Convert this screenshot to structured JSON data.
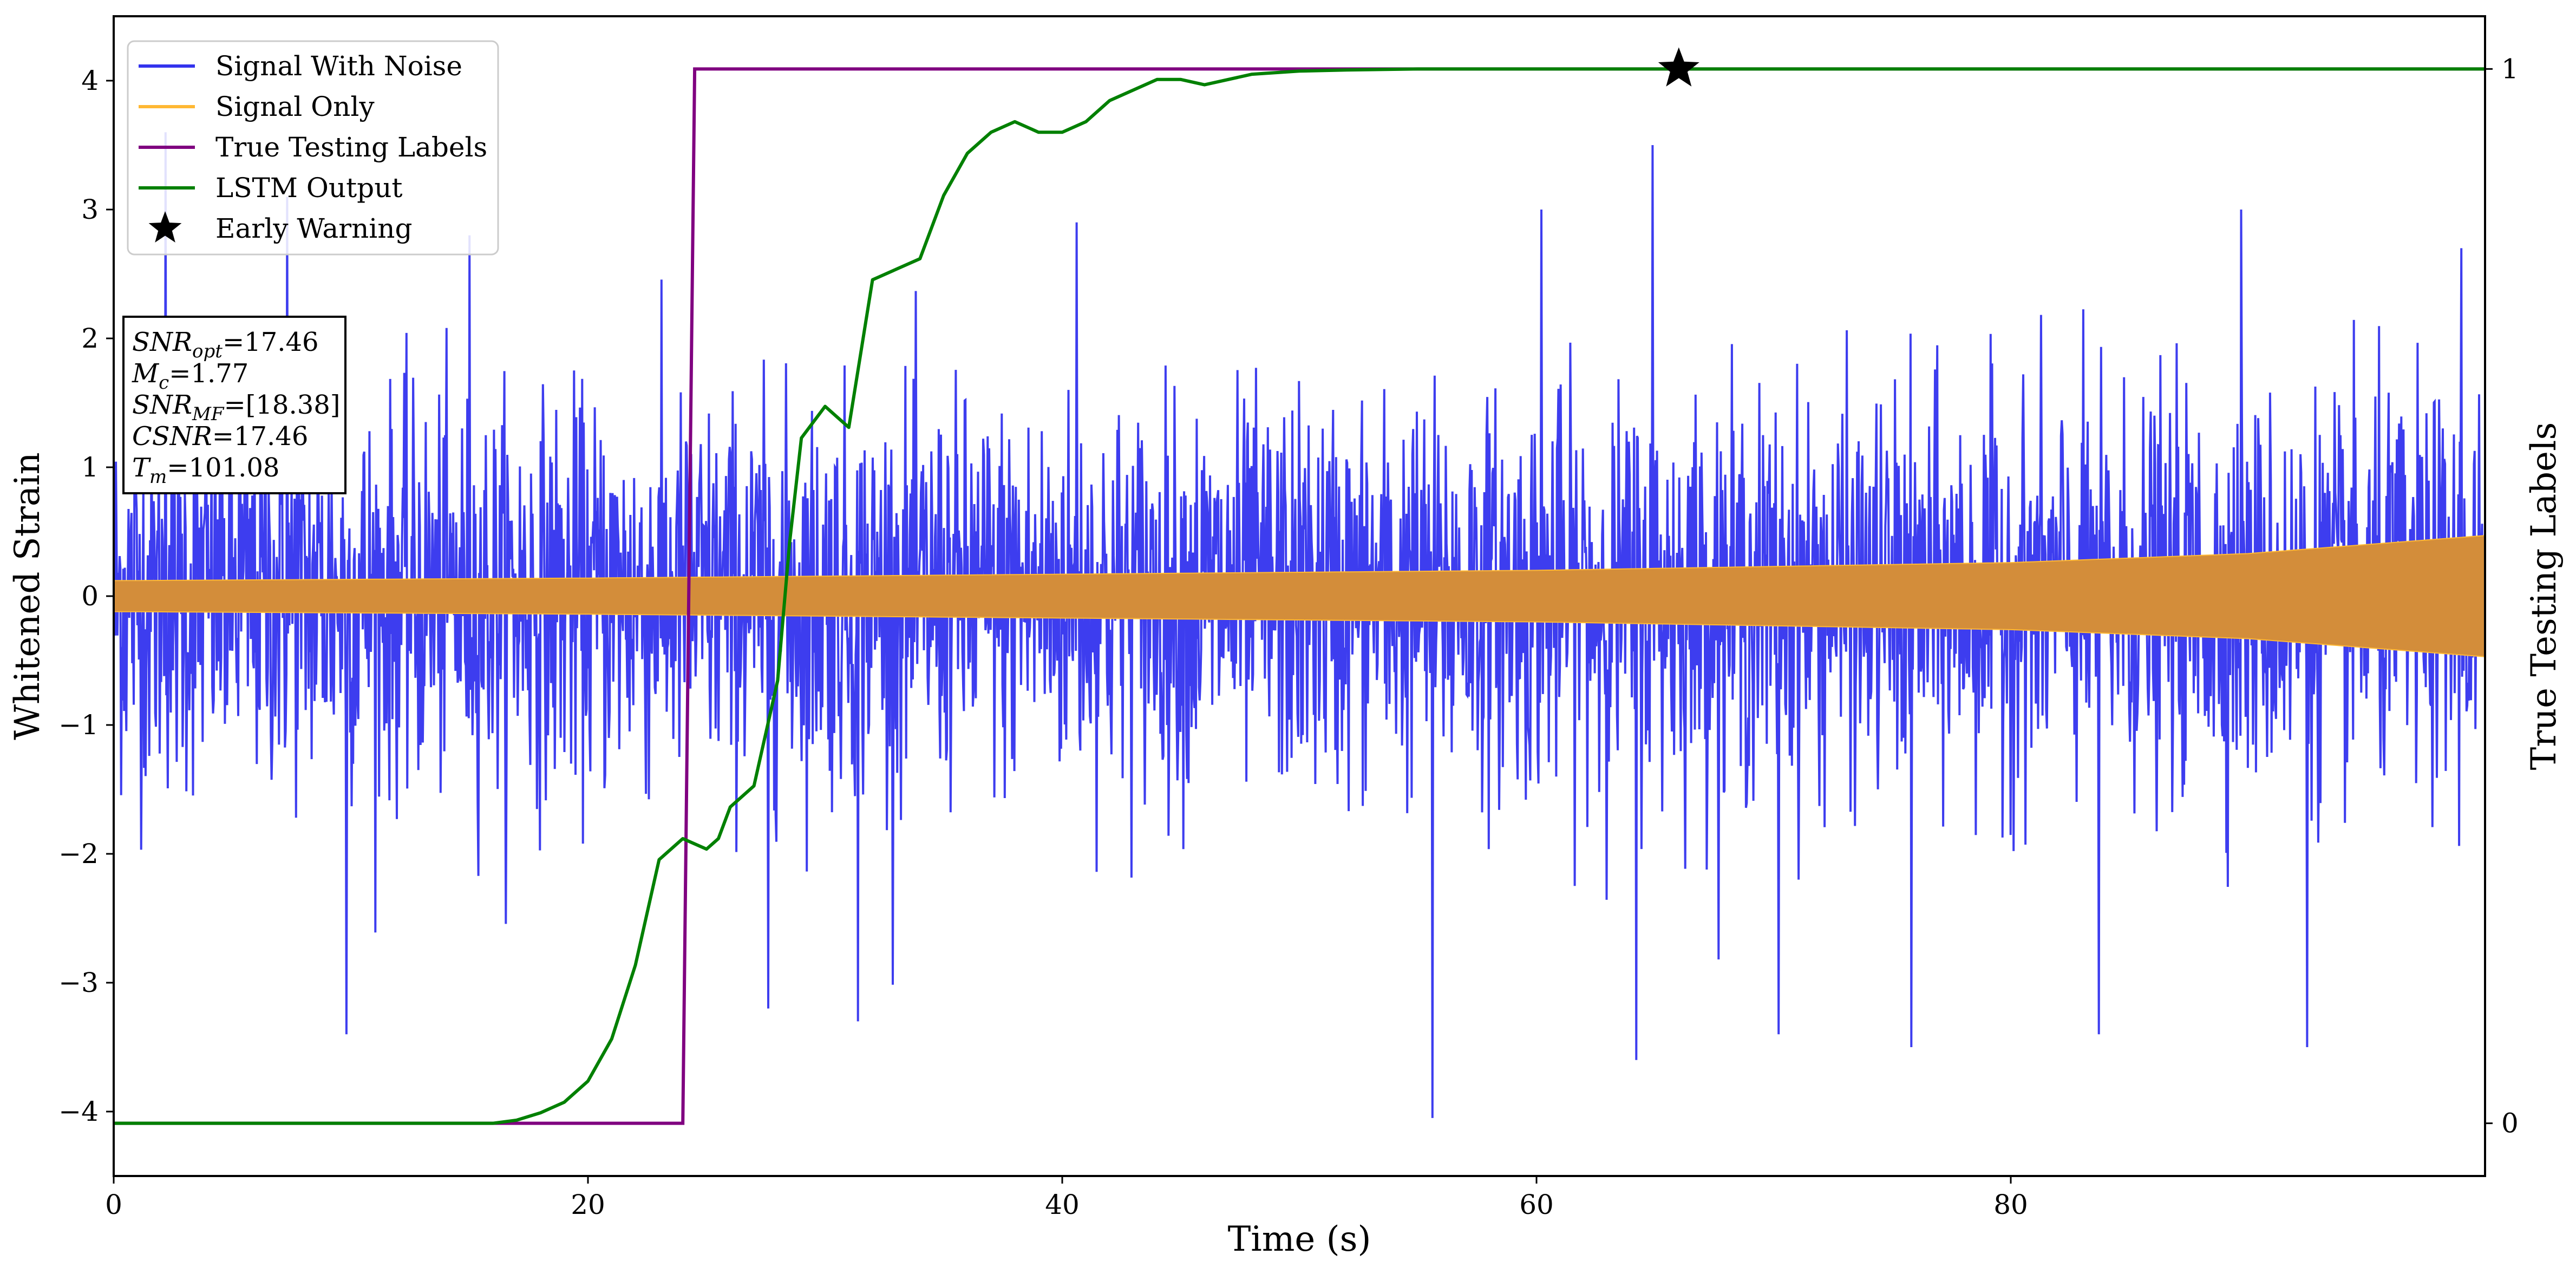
{
  "chart_data": {
    "type": "line",
    "title": "",
    "xlabel": "Time (s)",
    "ylabel": "Whitened Strain",
    "y2label": "True Testing Labels",
    "xlim": [
      0,
      100
    ],
    "ylim": [
      -4.5,
      4.5
    ],
    "y2lim": [
      -0.05,
      1.05
    ],
    "x_ticks": [
      0,
      20,
      40,
      60,
      80
    ],
    "y_ticks": [
      -4,
      -3,
      -2,
      -1,
      0,
      1,
      2,
      3,
      4
    ],
    "y2_ticks": [
      0,
      1
    ],
    "grid": false,
    "legend_position": "top-left",
    "series": [
      {
        "name": "Signal With Noise",
        "color": "#3333ee",
        "axis": "left",
        "kind": "noise",
        "approx_std": 0.75,
        "approx_peaks": [
          {
            "x": 2.2,
            "y": 3.6
          },
          {
            "x": 7.3,
            "y": 3.1
          },
          {
            "x": 9.8,
            "y": -3.4
          },
          {
            "x": 15.0,
            "y": 2.8
          },
          {
            "x": 27.6,
            "y": -3.2
          },
          {
            "x": 31.4,
            "y": -3.3
          },
          {
            "x": 40.6,
            "y": 2.9
          },
          {
            "x": 55.6,
            "y": -4.05
          },
          {
            "x": 60.2,
            "y": 3.0
          },
          {
            "x": 64.2,
            "y": -3.6
          },
          {
            "x": 64.9,
            "y": 3.5
          },
          {
            "x": 70.2,
            "y": -3.4
          },
          {
            "x": 75.8,
            "y": -3.5
          },
          {
            "x": 83.7,
            "y": -3.4
          },
          {
            "x": 89.7,
            "y": 3.0
          },
          {
            "x": 92.5,
            "y": -3.5
          },
          {
            "x": 99.0,
            "y": 2.7
          }
        ]
      },
      {
        "name": "Signal Only",
        "color": "#ffb833",
        "fill_color": "#d38d3a",
        "axis": "left",
        "kind": "envelope",
        "amplitude_x": [
          0,
          20,
          40,
          60,
          80,
          90,
          100
        ],
        "amplitude_y": [
          0.12,
          0.14,
          0.17,
          0.2,
          0.26,
          0.33,
          0.47
        ]
      },
      {
        "name": "True Testing Labels",
        "color": "#800080",
        "axis": "right",
        "x": [
          0,
          24,
          24.5,
          100
        ],
        "y": [
          0,
          0,
          1,
          1
        ]
      },
      {
        "name": "LSTM Output",
        "color": "#008000",
        "axis": "right",
        "x": [
          0,
          16,
          17,
          18,
          19,
          20,
          21,
          22,
          23,
          24,
          25,
          25.5,
          26,
          27,
          28,
          28.5,
          29,
          30,
          30.5,
          31,
          32,
          33,
          34,
          35,
          36,
          37,
          38,
          39,
          40,
          41,
          42,
          43,
          44,
          45,
          46,
          48,
          50,
          52,
          55,
          60,
          100
        ],
        "y": [
          0,
          0,
          0.003,
          0.01,
          0.02,
          0.04,
          0.08,
          0.15,
          0.25,
          0.27,
          0.26,
          0.27,
          0.3,
          0.32,
          0.42,
          0.55,
          0.65,
          0.68,
          0.67,
          0.66,
          0.8,
          0.81,
          0.82,
          0.88,
          0.92,
          0.94,
          0.95,
          0.94,
          0.94,
          0.95,
          0.97,
          0.98,
          0.99,
          0.99,
          0.985,
          0.995,
          0.998,
          0.999,
          1.0,
          1.0,
          1.0
        ]
      }
    ],
    "markers": [
      {
        "name": "Early Warning",
        "x": 66,
        "y": 1.0,
        "axis": "right",
        "symbol": "star",
        "color": "#000000"
      }
    ]
  },
  "legend": {
    "items": [
      {
        "label": "Signal With Noise",
        "color": "#3333ee",
        "symbol": "line"
      },
      {
        "label": "Signal Only",
        "color": "#ffb833",
        "symbol": "line"
      },
      {
        "label": "True Testing Labels",
        "color": "#800080",
        "symbol": "line"
      },
      {
        "label": "LSTM Output",
        "color": "#008000",
        "symbol": "line"
      },
      {
        "label": "Early Warning",
        "color": "#000000",
        "symbol": "star"
      }
    ]
  },
  "info_box": {
    "lines": [
      {
        "base": "SNR",
        "sub": "opt",
        "value": "=17.46"
      },
      {
        "base": "M",
        "sub": "c",
        "value": "=1.77"
      },
      {
        "base": "SNR",
        "sub": "MF",
        "value": "=[18.38]"
      },
      {
        "base": "CSNR",
        "sub": "",
        "value": "=17.46"
      },
      {
        "base": "T",
        "sub": "m",
        "value": "=101.08"
      }
    ]
  }
}
